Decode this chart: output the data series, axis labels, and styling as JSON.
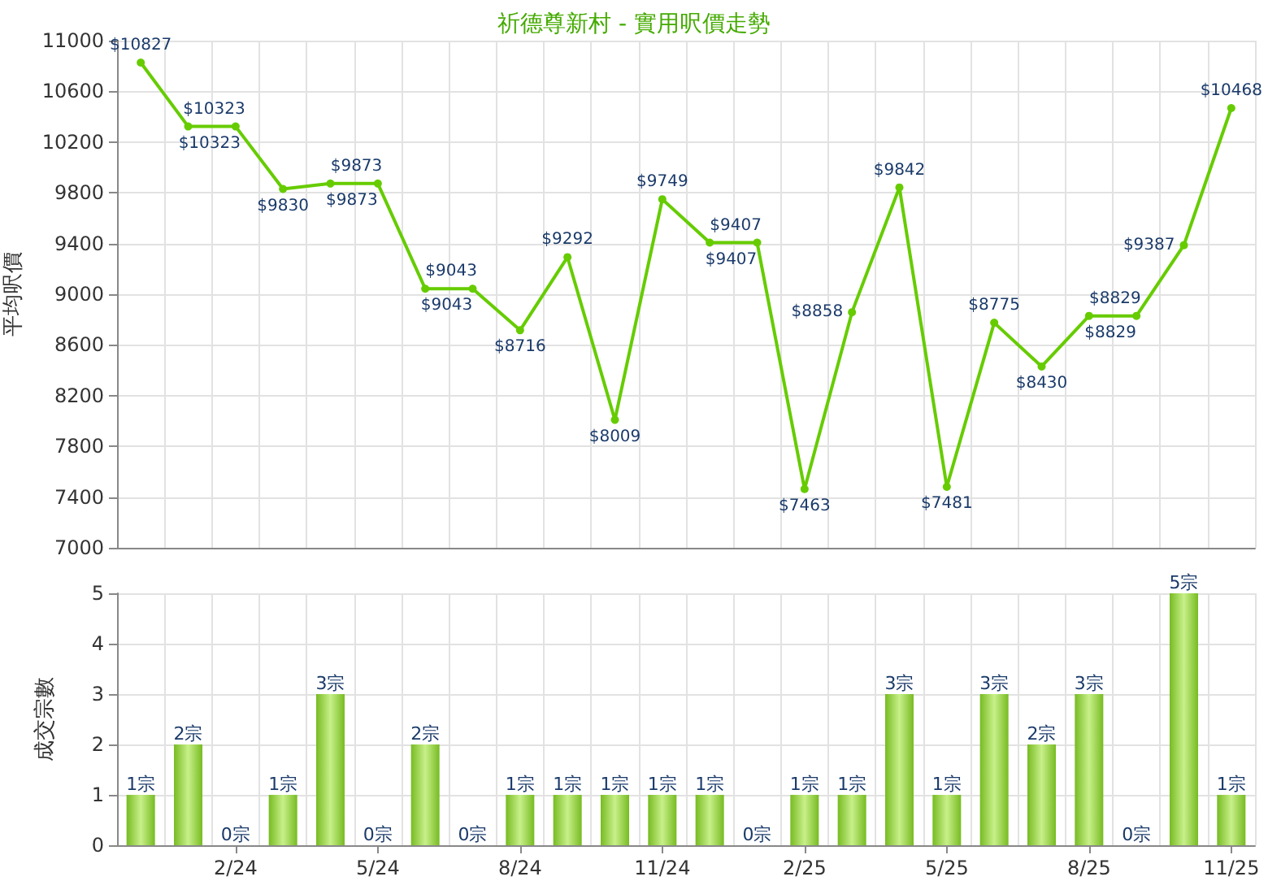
{
  "chart_data": [
    {
      "type": "line",
      "title": "祈德尊新村 - 實用呎價走勢",
      "ylabel": "平均呎價",
      "categories": [
        null,
        null,
        null,
        null,
        null,
        null,
        null,
        null,
        null,
        null,
        null,
        null,
        null,
        null,
        null,
        null,
        null,
        null,
        null,
        null,
        null,
        null,
        null,
        null
      ],
      "series": [
        {
          "color": "#66cc00",
          "values": [
            10827,
            10323,
            10323,
            9830,
            9873,
            9873,
            9043,
            9043,
            8716,
            9292,
            8009,
            9749,
            9407,
            9407,
            7463,
            8858,
            9842,
            7481,
            8775,
            8430,
            8829,
            8829,
            9387,
            10468
          ],
          "value_labels": [
            "$10827",
            "$10323",
            "$10323",
            "$9830",
            "$9873",
            "$9873",
            "$9043",
            "$9043",
            "$8716",
            "$9292",
            "$8009",
            "$9749",
            "$9407",
            "$9407",
            "$7463",
            "$8858",
            "$9842",
            "$7481",
            "$8775",
            "$8430",
            "$8829",
            "$8829",
            "$9387",
            "$10468"
          ]
        }
      ],
      "ylim": [
        7000,
        11000
      ],
      "yticks": [
        7000,
        7400,
        7800,
        8200,
        8600,
        9000,
        9400,
        9800,
        10200,
        10600,
        11000
      ],
      "grid": true,
      "marker": "circle",
      "line_style": "solid",
      "tick_labels": "y"
    },
    {
      "type": "bar",
      "ylabel": "成交宗數",
      "categories": [
        null,
        null,
        "2/24",
        null,
        null,
        "5/24",
        null,
        null,
        "8/24",
        null,
        null,
        "11/24",
        null,
        null,
        "2/25",
        null,
        null,
        "5/25",
        null,
        null,
        "8/25",
        null,
        null,
        "11/25"
      ],
      "series": [
        {
          "color": "#77bb22",
          "values": [
            1,
            2,
            0,
            1,
            3,
            0,
            2,
            0,
            1,
            1,
            1,
            1,
            1,
            0,
            1,
            1,
            3,
            1,
            3,
            2,
            3,
            0,
            5,
            1
          ],
          "value_labels": [
            "1宗",
            "2宗",
            "0宗",
            "1宗",
            "3宗",
            "0宗",
            "2宗",
            "0宗",
            "1宗",
            "1宗",
            "1宗",
            "1宗",
            "1宗",
            "0宗",
            "1宗",
            "1宗",
            "3宗",
            "1宗",
            "3宗",
            "2宗",
            "3宗",
            "0宗",
            "5宗",
            "1宗"
          ]
        }
      ],
      "ylim": [
        0,
        5
      ],
      "yticks": [
        0,
        1,
        2,
        3,
        4,
        5
      ],
      "grid": true
    }
  ]
}
